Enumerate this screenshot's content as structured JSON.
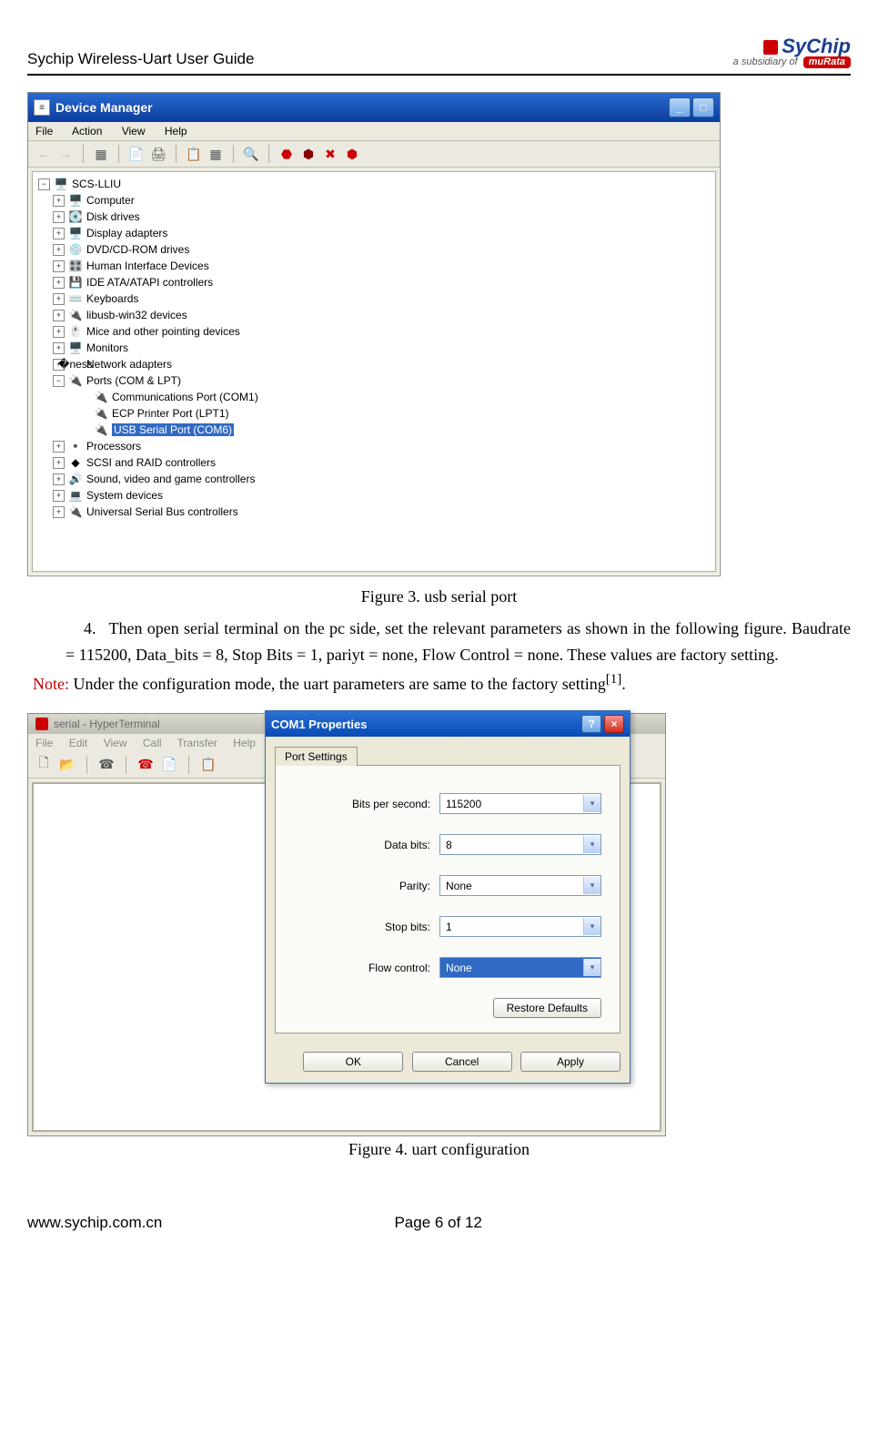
{
  "header": {
    "title": "Sychip Wireless-Uart User Guide",
    "logo_main": "SyChip",
    "logo_sub": "a subsidiary of",
    "logo_brand": "muRata"
  },
  "device_manager": {
    "title": "Device Manager",
    "menus": [
      "File",
      "Action",
      "View",
      "Help"
    ],
    "root": "SCS-LLIU",
    "items": [
      {
        "label": "Computer",
        "icon": "🖥️"
      },
      {
        "label": "Disk drives",
        "icon": "💽"
      },
      {
        "label": "Display adapters",
        "icon": "🖥️"
      },
      {
        "label": "DVD/CD-ROM drives",
        "icon": "💿"
      },
      {
        "label": "Human Interface Devices",
        "icon": "🎛️"
      },
      {
        "label": "IDE ATA/ATAPI controllers",
        "icon": "💾"
      },
      {
        "label": "Keyboards",
        "icon": "⌨️"
      },
      {
        "label": "libusb-win32 devices",
        "icon": "🔌"
      },
      {
        "label": "Mice and other pointing devices",
        "icon": "🖱️"
      },
      {
        "label": "Monitors",
        "icon": "🖥️"
      },
      {
        "label": "Network adapters",
        "icon": "�ness"
      }
    ],
    "ports_label": "Ports (COM & LPT)",
    "ports_children": [
      {
        "label": "Communications Port (COM1)"
      },
      {
        "label": "ECP Printer Port (LPT1)"
      },
      {
        "label": "USB Serial Port (COM6)",
        "selected": true
      }
    ],
    "items_after": [
      {
        "label": "Processors",
        "icon": "▪️"
      },
      {
        "label": "SCSI and RAID controllers",
        "icon": "◆"
      },
      {
        "label": "Sound, video and game controllers",
        "icon": "🔊"
      },
      {
        "label": "System devices",
        "icon": "💻"
      },
      {
        "label": "Universal Serial Bus controllers",
        "icon": "🔌"
      }
    ]
  },
  "figure3_caption": "Figure 3. usb serial port",
  "step4": {
    "number": "4.",
    "text": "Then open serial terminal on the pc side, set the relevant parameters as shown in the following figure. Baudrate = 115200, Data_bits = 8, Stop Bits = 1, pariyt = none, Flow Control = none. These values are factory setting."
  },
  "note": {
    "label": "Note:",
    "text": " Under the configuration mode, the uart parameters are same to the factory setting",
    "sup": "[1]",
    "period": "."
  },
  "hyperterminal": {
    "title": "serial - HyperTerminal",
    "menus": [
      "File",
      "Edit",
      "View",
      "Call",
      "Transfer",
      "Help"
    ]
  },
  "com_dialog": {
    "title": "COM1 Properties",
    "tab": "Port Settings",
    "fields": [
      {
        "label": "Bits per second:",
        "value": "115200"
      },
      {
        "label": "Data bits:",
        "value": "8"
      },
      {
        "label": "Parity:",
        "value": "None"
      },
      {
        "label": "Stop bits:",
        "value": "1"
      },
      {
        "label": "Flow control:",
        "value": "None",
        "selected": true
      }
    ],
    "restore_btn": "Restore Defaults",
    "ok": "OK",
    "cancel": "Cancel",
    "apply": "Apply"
  },
  "figure4_caption": "Figure 4. uart configuration",
  "footer": {
    "left": "www.sychip.com.cn",
    "center": "Page 6 of 12"
  }
}
